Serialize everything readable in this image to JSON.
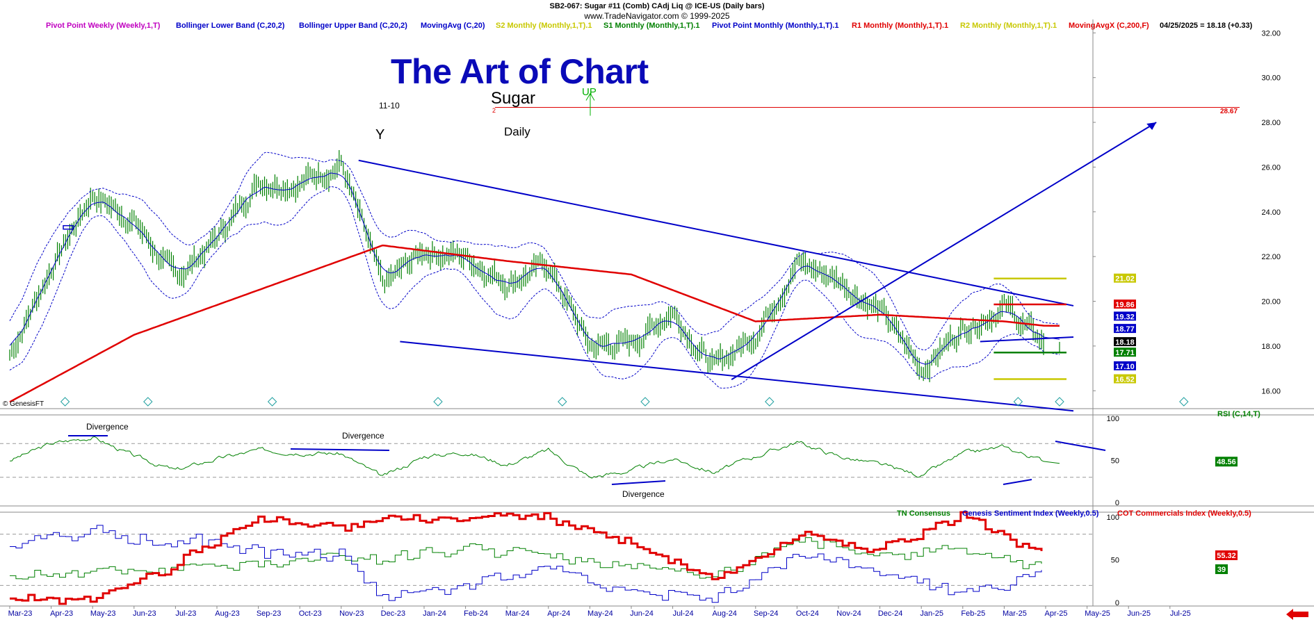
{
  "header": {
    "line1_code": "SB2-067:",
    "line1_rest": "Sugar #11 (Comb) CAdj Liq @ ICE-US  (Daily bars)",
    "line2": "www.TradeNavigator.com © 1999-2025"
  },
  "legend": [
    {
      "label": "Pivot Point Weekly (Weekly,1,T)",
      "color": "#c000c0"
    },
    {
      "label": "Bollinger Lower Band (C,20,2)",
      "color": "#0000c8"
    },
    {
      "label": "Bollinger Upper Band (C,20,2)",
      "color": "#0000c8"
    },
    {
      "label": "MovingAvg (C,20)",
      "color": "#0000c8"
    },
    {
      "label": "S2 Monthly (Monthly,1,T).1",
      "color": "#c8c800"
    },
    {
      "label": "S1 Monthly (Monthly,1,T).1",
      "color": "#008000"
    },
    {
      "label": "Pivot Point Monthly (Monthly,1,T).1",
      "color": "#0000c8"
    },
    {
      "label": "R1 Monthly (Monthly,1,T).1",
      "color": "#e00000"
    },
    {
      "label": "R2 Monthly (Monthly,1,T).1",
      "color": "#c8c800"
    },
    {
      "label": "MovingAvgX (C,200,F)",
      "color": "#e00000"
    },
    {
      "label": "04/25/2025 = 18.18 (+0.33)",
      "color": "#000000"
    }
  ],
  "annotations": {
    "title": "The Art of Chart",
    "instrument": "Sugar",
    "timeframe": "Daily",
    "code": "11-10",
    "y_mark": "Y",
    "up_mark": "UP",
    "two_mark": "2",
    "line_value": "28.67",
    "copyright": "© GenesisFT",
    "divergence_1": "Divergence",
    "divergence_2": "Divergence",
    "divergence_3": "Divergence"
  },
  "rsi": {
    "label": "RSI (C,14,T)",
    "last": "48.56"
  },
  "sentiment_legend": [
    {
      "label": "TN Consensus",
      "color": "#008000"
    },
    {
      "label": "Genesis Sentiment Index (Weekly,0.5)",
      "color": "#0000c8"
    },
    {
      "label": "COT Commercials Index (Weekly,0.5)",
      "color": "#e00000"
    }
  ],
  "sentiment_last": {
    "cot": "55.32",
    "tn": "39"
  },
  "price_tags": [
    {
      "value": "21.02",
      "bg": "#c8c800"
    },
    {
      "value": "19.86",
      "bg": "#e00000"
    },
    {
      "value": "19.32",
      "bg": "#0000c8"
    },
    {
      "value": "18.77",
      "bg": "#0000c8"
    },
    {
      "value": "18.18",
      "bg": "#000000"
    },
    {
      "value": "17.71",
      "bg": "#008000"
    },
    {
      "value": "17.10",
      "bg": "#0000c8"
    },
    {
      "value": "16.52",
      "bg": "#c8c800"
    }
  ],
  "colors": {
    "price_bars": "#008000",
    "bollinger": "#0000c8",
    "ma200": "#e00000",
    "trendlines": "#0000c8",
    "rsi": "#008000",
    "cot": "#e00000",
    "gsi": "#0000c8",
    "tn": "#008000",
    "grid": "#bdbdbd"
  },
  "chart_data": [
    {
      "type": "line",
      "title": "Sugar #11 (Comb) CAdj Liq @ ICE-US (Daily bars)",
      "y_ticks": [
        "16.00",
        "18.00",
        "20.00",
        "22.00",
        "24.00",
        "26.00",
        "28.00",
        "30.00",
        "32.00"
      ],
      "ylim": [
        15.2,
        32.6
      ],
      "x_ticks": [
        "Mar-23",
        "Apr-23",
        "May-23",
        "Jun-23",
        "Jul-23",
        "Aug-23",
        "Sep-23",
        "Oct-23",
        "Nov-23",
        "Dec-23",
        "Jan-24",
        "Feb-24",
        "Mar-24",
        "Apr-24",
        "May-24",
        "Jun-24",
        "Jul-24",
        "Aug-24",
        "Sep-24",
        "Oct-24",
        "Nov-24",
        "Dec-24",
        "Jan-25",
        "Feb-25",
        "Mar-25",
        "Apr-25",
        "May-25",
        "Jun-25",
        "Jul-25"
      ],
      "series": [
        {
          "name": "Close",
          "x": [
            "Mar-23",
            "Apr-23",
            "May-23",
            "Jun-23",
            "Jul-23",
            "Aug-23",
            "Sep-23",
            "Oct-23",
            "Nov-23",
            "Dec-23",
            "Jan-24",
            "Feb-24",
            "Mar-24",
            "Apr-24",
            "May-24",
            "Jun-24",
            "Jul-24",
            "Aug-24",
            "Sep-24",
            "Oct-24",
            "Nov-24",
            "Dec-24",
            "Jan-25",
            "Feb-25",
            "Mar-25",
            "Apr-25"
          ],
          "values": [
            17.6,
            21.5,
            24.8,
            23.6,
            21.0,
            22.8,
            25.4,
            25.3,
            26.2,
            20.6,
            22.3,
            22.0,
            20.9,
            21.6,
            18.0,
            18.1,
            19.6,
            17.0,
            18.6,
            21.7,
            21.0,
            19.6,
            17.0,
            18.8,
            19.8,
            18.0
          ]
        },
        {
          "name": "MovingAvgX (C,200,F)",
          "x": [
            "Mar-23",
            "Jun-23",
            "Sep-23",
            "Dec-23",
            "Mar-24",
            "Jun-24",
            "Sep-24",
            "Dec-24",
            "Mar-25",
            "Apr-25"
          ],
          "values": [
            15.5,
            18.5,
            20.5,
            22.5,
            21.8,
            21.2,
            19.1,
            19.4,
            19.1,
            18.9
          ]
        }
      ],
      "trendlines": [
        {
          "from": [
            "Nov-23",
            26.3
          ],
          "to": [
            "Apr-25",
            19.8
          ]
        },
        {
          "from": [
            "Dec-23",
            18.2
          ],
          "to": [
            "Apr-25",
            15.1
          ]
        },
        {
          "from": [
            "Aug-24",
            16.5
          ],
          "to": [
            "Jun-25",
            28.0
          ]
        },
        {
          "from": [
            "Feb-25",
            18.2
          ],
          "to": [
            "Apr-25",
            18.4
          ]
        }
      ],
      "horizontal_levels": [
        {
          "label": "R2",
          "value": 21.02
        },
        {
          "label": "R1",
          "value": 19.86
        },
        {
          "label": "S1",
          "value": 17.71
        },
        {
          "label": "S2",
          "value": 16.52
        },
        {
          "label": "line",
          "value": 28.67
        }
      ]
    },
    {
      "type": "line",
      "title": "RSI (C,14,T)",
      "y_ticks": [
        "0",
        "50",
        "100"
      ],
      "ylim": [
        0,
        100
      ],
      "series": [
        {
          "name": "RSI (C,14,T)",
          "x": [
            "Mar-23",
            "Apr-23",
            "May-23",
            "Jun-23",
            "Jul-23",
            "Aug-23",
            "Sep-23",
            "Oct-23",
            "Nov-23",
            "Dec-23",
            "Jan-24",
            "Feb-24",
            "Mar-24",
            "Apr-24",
            "May-24",
            "Jun-24",
            "Jul-24",
            "Aug-24",
            "Sep-24",
            "Oct-24",
            "Nov-24",
            "Dec-24",
            "Jan-25",
            "Feb-25",
            "Mar-25",
            "Apr-25"
          ],
          "values": [
            50,
            70,
            78,
            55,
            38,
            52,
            62,
            60,
            58,
            30,
            55,
            60,
            45,
            62,
            30,
            38,
            52,
            36,
            55,
            72,
            55,
            45,
            32,
            58,
            66,
            48.56
          ]
        }
      ]
    },
    {
      "type": "line",
      "title": "Sentiment",
      "y_ticks": [
        "0",
        "50",
        "100"
      ],
      "ylim": [
        0,
        100
      ],
      "series": [
        {
          "name": "COT Commercials Index (Weekly,0.5)",
          "x": [
            "Mar-23",
            "May-23",
            "Jul-23",
            "Sep-23",
            "Nov-23",
            "Dec-23",
            "Feb-24",
            "Apr-24",
            "Jun-24",
            "Aug-24",
            "Oct-24",
            "Dec-24",
            "Feb-25",
            "Apr-25"
          ],
          "values": [
            5,
            2,
            45,
            100,
            85,
            100,
            100,
            100,
            70,
            25,
            80,
            60,
            100,
            55.32
          ]
        },
        {
          "name": "Genesis Sentiment Index (Weekly,0.5)",
          "x": [
            "Mar-23",
            "May-23",
            "Jul-23",
            "Sep-23",
            "Nov-23",
            "Dec-23",
            "Feb-24",
            "Apr-24",
            "Jun-24",
            "Aug-24",
            "Oct-24",
            "Dec-24",
            "Feb-25",
            "Apr-25"
          ],
          "values": [
            70,
            80,
            75,
            60,
            55,
            5,
            20,
            40,
            10,
            5,
            55,
            35,
            10,
            40
          ]
        },
        {
          "name": "TN Consensus",
          "x": [
            "Mar-23",
            "May-23",
            "Jul-23",
            "Sep-23",
            "Nov-23",
            "Dec-23",
            "Feb-24",
            "Apr-24",
            "Jun-24",
            "Aug-24",
            "Oct-24",
            "Dec-24",
            "Feb-25",
            "Apr-25"
          ],
          "values": [
            30,
            35,
            40,
            45,
            55,
            50,
            65,
            55,
            45,
            30,
            70,
            55,
            65,
            39
          ]
        }
      ]
    }
  ]
}
